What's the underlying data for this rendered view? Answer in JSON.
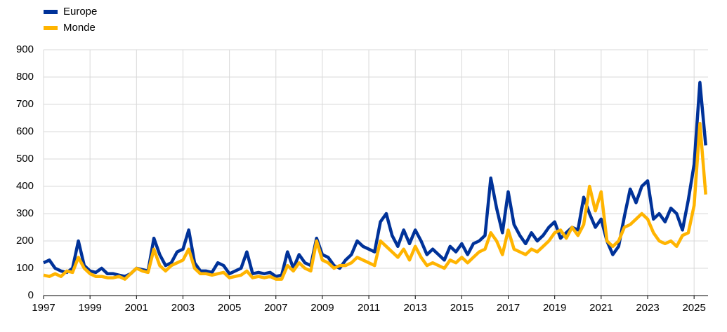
{
  "chart_data": {
    "type": "line",
    "x": [
      1997,
      1997.25,
      1997.5,
      1997.75,
      1998,
      1998.25,
      1998.5,
      1998.75,
      1999,
      1999.25,
      1999.5,
      1999.75,
      2000,
      2000.25,
      2000.5,
      2000.75,
      2001,
      2001.25,
      2001.5,
      2001.75,
      2002,
      2002.25,
      2002.5,
      2002.75,
      2003,
      2003.25,
      2003.5,
      2003.75,
      2004,
      2004.25,
      2004.5,
      2004.75,
      2005,
      2005.25,
      2005.5,
      2005.75,
      2006,
      2006.25,
      2006.5,
      2006.75,
      2007,
      2007.25,
      2007.5,
      2007.75,
      2008,
      2008.25,
      2008.5,
      2008.75,
      2009,
      2009.25,
      2009.5,
      2009.75,
      2010,
      2010.25,
      2010.5,
      2010.75,
      2011,
      2011.25,
      2011.5,
      2011.75,
      2012,
      2012.25,
      2012.5,
      2012.75,
      2013,
      2013.25,
      2013.5,
      2013.75,
      2014,
      2014.25,
      2014.5,
      2014.75,
      2015,
      2015.25,
      2015.5,
      2015.75,
      2016,
      2016.25,
      2016.5,
      2016.75,
      2017,
      2017.25,
      2017.5,
      2017.75,
      2018,
      2018.25,
      2018.5,
      2018.75,
      2019,
      2019.25,
      2019.5,
      2019.75,
      2020,
      2020.25,
      2020.5,
      2020.75,
      2021,
      2021.25,
      2021.5,
      2021.75,
      2022,
      2022.25,
      2022.5,
      2022.75,
      2023,
      2023.25,
      2023.5,
      2023.75,
      2024,
      2024.25,
      2024.5,
      2024.75,
      2025,
      2025.25,
      2025.5
    ],
    "series": [
      {
        "name": "Europe",
        "color": "#003299",
        "values": [
          120,
          130,
          100,
          90,
          85,
          100,
          200,
          110,
          90,
          85,
          100,
          80,
          80,
          75,
          70,
          80,
          100,
          95,
          90,
          210,
          150,
          110,
          120,
          160,
          170,
          240,
          120,
          90,
          90,
          85,
          120,
          110,
          80,
          90,
          100,
          160,
          80,
          85,
          80,
          85,
          70,
          75,
          160,
          100,
          150,
          120,
          110,
          210,
          150,
          140,
          110,
          100,
          130,
          150,
          200,
          180,
          170,
          160,
          270,
          300,
          220,
          180,
          240,
          190,
          240,
          200,
          150,
          170,
          150,
          130,
          180,
          160,
          190,
          150,
          190,
          200,
          220,
          430,
          320,
          230,
          380,
          260,
          220,
          190,
          230,
          200,
          220,
          250,
          270,
          210,
          230,
          250,
          240,
          360,
          300,
          250,
          280,
          200,
          150,
          180,
          290,
          390,
          340,
          400,
          420,
          280,
          300,
          270,
          320,
          300,
          240,
          350,
          480,
          780,
          550
        ]
      },
      {
        "name": "Monde",
        "color": "#ffb400",
        "values": [
          75,
          70,
          80,
          70,
          90,
          85,
          140,
          100,
          80,
          70,
          70,
          65,
          65,
          70,
          60,
          80,
          100,
          90,
          85,
          170,
          110,
          90,
          110,
          120,
          130,
          170,
          100,
          80,
          80,
          75,
          80,
          85,
          65,
          70,
          75,
          90,
          65,
          70,
          65,
          70,
          60,
          60,
          110,
          90,
          120,
          100,
          90,
          200,
          130,
          120,
          100,
          110,
          110,
          120,
          140,
          130,
          120,
          110,
          200,
          180,
          160,
          140,
          170,
          130,
          180,
          140,
          110,
          120,
          110,
          100,
          130,
          120,
          140,
          120,
          140,
          160,
          170,
          230,
          200,
          150,
          240,
          170,
          160,
          150,
          170,
          160,
          180,
          200,
          230,
          240,
          210,
          250,
          220,
          260,
          400,
          310,
          380,
          200,
          180,
          200,
          250,
          260,
          280,
          300,
          280,
          230,
          200,
          190,
          200,
          180,
          220,
          230,
          330,
          630,
          370
        ]
      }
    ],
    "xlim": [
      1997,
      2025.6
    ],
    "xticks": [
      1997,
      1999,
      2001,
      2003,
      2005,
      2007,
      2009,
      2011,
      2013,
      2015,
      2017,
      2019,
      2021,
      2023,
      2025
    ],
    "ylim": [
      0,
      900
    ],
    "yticks": [
      0,
      100,
      200,
      300,
      400,
      500,
      600,
      700,
      800,
      900
    ],
    "grid": true
  }
}
